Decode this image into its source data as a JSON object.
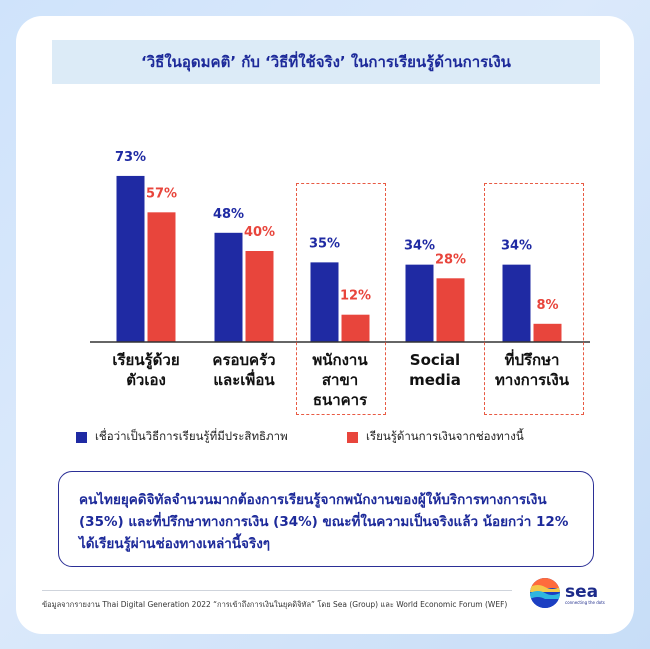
{
  "title": "‘วิธีในอุดมคติ’ กับ ‘วิธีที่ใช้จริง’ ในการเรียนรู้ด้านการเงิน",
  "chart_data": {
    "type": "bar",
    "categories": [
      [
        "เรียนรู้ด้วย",
        "ตัวเอง"
      ],
      [
        "ครอบครัว",
        "และเพื่อน"
      ],
      [
        "พนักงาน",
        "สาขา",
        "ธนาคาร"
      ],
      [
        "Social",
        "media"
      ],
      [
        "ที่ปรึกษา",
        "ทางการเงิน"
      ]
    ],
    "series": [
      {
        "name": "เชื่อว่าเป็นวิธีการเรียนรู้ที่มีประสิทธิภาพ",
        "values": [
          73,
          48,
          35,
          34,
          34
        ],
        "labels": [
          "73%",
          "48%",
          "35%",
          "34%",
          "34%"
        ],
        "color": "#1f2aa3",
        "label_color": "#1f2aa3"
      },
      {
        "name": "เรียนรู้ด้านการเงินจากช่องทางนี้",
        "values": [
          57,
          40,
          12,
          28,
          8
        ],
        "labels": [
          "57%",
          "40%",
          "12%",
          "28%",
          "8%"
        ],
        "color": "#e8453c",
        "label_color": "#e8453c"
      }
    ],
    "highlighted_categories": [
      2,
      4
    ],
    "ylim": [
      0,
      80
    ],
    "grid": false
  },
  "note": "คนไทยยุคดิจิทัลจำนวนมากต้องการเรียนรู้จากพนักงานของผู้ให้บริการทางการเงิน (35%) และที่ปรึกษาทางการเงิน (34%) ขณะที่ในความเป็นจริงแล้ว น้อยกว่า 12% ได้เรียนรู้ผ่านช่องทางเหล่านี้จริงๆ",
  "source": "ข้อมูลจากรายงาน Thai Digital Generation 2022 “การเข้าถึงการเงินในยุคดิจิทัล” โดย Sea (Group) และ World Economic Forum (WEF)",
  "logo": {
    "text": "sea",
    "tagline": "connecting the dots"
  }
}
